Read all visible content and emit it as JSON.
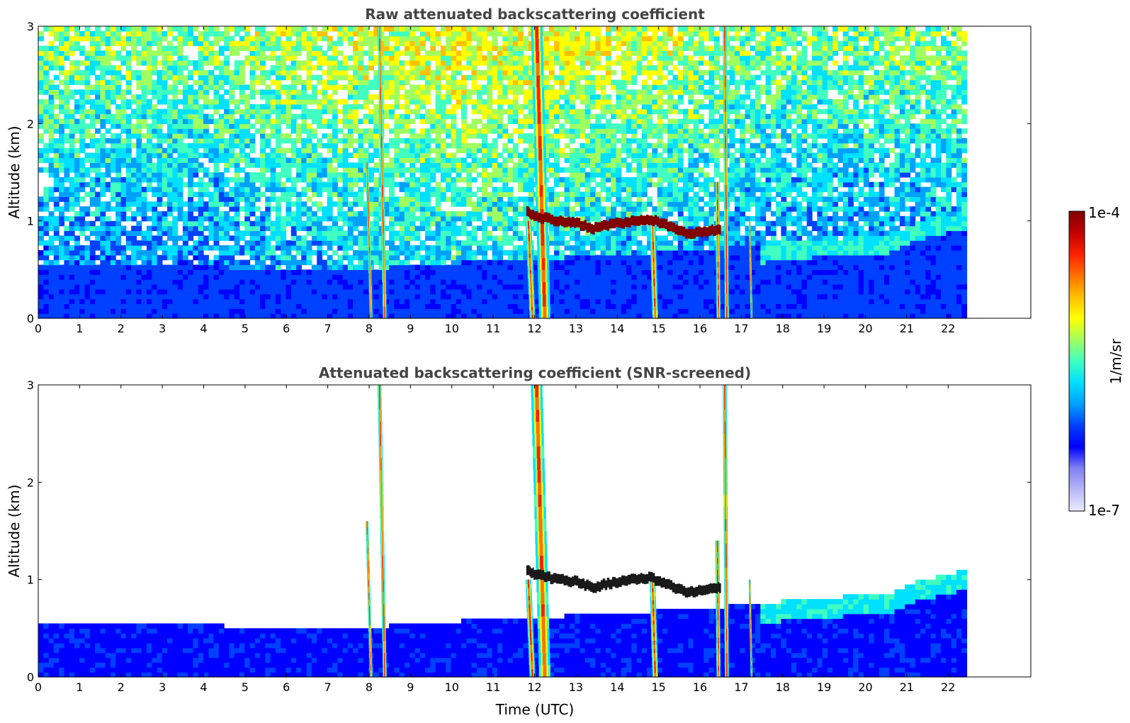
{
  "chart_data": [
    {
      "type": "heatmap",
      "title": "Raw attenuated backscattering coefficient",
      "xlabel": "",
      "ylabel": "Altitude (km)",
      "xlim": [
        0,
        24
      ],
      "ylim": [
        0,
        3
      ],
      "x_ticks": [
        "0",
        "1",
        "2",
        "3",
        "4",
        "5",
        "6",
        "7",
        "8",
        "9",
        "10",
        "11",
        "12",
        "13",
        "14",
        "15",
        "16",
        "17",
        "18",
        "19",
        "20",
        "21",
        "22"
      ],
      "y_ticks": [
        "0",
        "1",
        "2",
        "3"
      ],
      "data_end_time": 22.45,
      "screened": false
    },
    {
      "type": "heatmap",
      "title": "Attenuated backscattering coefficient (SNR-screened)",
      "xlabel": "Time (UTC)",
      "ylabel": "Altitude (km)",
      "xlim": [
        0,
        24
      ],
      "ylim": [
        0,
        3
      ],
      "x_ticks": [
        "0",
        "1",
        "2",
        "3",
        "4",
        "5",
        "6",
        "7",
        "8",
        "9",
        "10",
        "11",
        "12",
        "13",
        "14",
        "15",
        "16",
        "17",
        "18",
        "19",
        "20",
        "21",
        "22"
      ],
      "y_ticks": [
        "0",
        "1",
        "2",
        "3"
      ],
      "data_end_time": 22.45,
      "screened": true
    }
  ],
  "features": {
    "precip_shafts": [
      {
        "t_top": 8.25,
        "t_bottom": 8.38,
        "h_top": 3.0,
        "width": 0.09
      },
      {
        "t_top": 7.95,
        "t_bottom": 8.05,
        "h_top": 1.6,
        "width": 0.07
      },
      {
        "t_top": 12.05,
        "t_bottom": 12.25,
        "h_top": 3.0,
        "width": 0.28
      },
      {
        "t_top": 11.85,
        "t_bottom": 11.95,
        "h_top": 1.0,
        "width": 0.14
      },
      {
        "t_top": 14.85,
        "t_bottom": 14.92,
        "h_top": 1.0,
        "width": 0.14
      },
      {
        "t_top": 16.6,
        "t_bottom": 16.65,
        "h_top": 3.0,
        "width": 0.1
      },
      {
        "t_top": 16.42,
        "t_bottom": 16.45,
        "h_top": 1.4,
        "width": 0.1
      },
      {
        "t_top": 17.2,
        "t_bottom": 17.25,
        "h_top": 1.0,
        "width": 0.05
      }
    ],
    "cloud_layer": [
      {
        "t": 11.8,
        "h": 1.1
      },
      {
        "t": 12.0,
        "h": 1.05
      },
      {
        "t": 12.6,
        "h": 1.0
      },
      {
        "t": 13.0,
        "h": 0.98
      },
      {
        "t": 13.4,
        "h": 0.92
      },
      {
        "t": 13.8,
        "h": 0.96
      },
      {
        "t": 14.4,
        "h": 1.0
      },
      {
        "t": 14.8,
        "h": 1.02
      },
      {
        "t": 15.2,
        "h": 0.95
      },
      {
        "t": 15.7,
        "h": 0.86
      },
      {
        "t": 16.2,
        "h": 0.9
      },
      {
        "t": 16.5,
        "h": 0.92
      }
    ],
    "boundary_layer": [
      {
        "t": 0.0,
        "h": 0.55
      },
      {
        "t": 0.9,
        "h": 0.55
      },
      {
        "t": 3.0,
        "h": 0.55
      },
      {
        "t": 6.0,
        "h": 0.5
      },
      {
        "t": 8.0,
        "h": 0.5
      },
      {
        "t": 9.0,
        "h": 0.55
      },
      {
        "t": 11.5,
        "h": 0.6
      },
      {
        "t": 14.0,
        "h": 0.65
      },
      {
        "t": 17.5,
        "h": 0.75
      },
      {
        "t": 18.5,
        "h": 0.8
      },
      {
        "t": 20.5,
        "h": 0.85
      },
      {
        "t": 21.4,
        "h": 1.0
      },
      {
        "t": 22.45,
        "h": 1.1
      }
    ]
  },
  "colorbar": {
    "label": "1/m/sr",
    "min_label": "1e-7",
    "max_label": "1e-4",
    "colors": [
      "#ececff",
      "#b8b8f8",
      "#8080f4",
      "#0000ff",
      "#0040ff",
      "#00a0ff",
      "#00e0ff",
      "#40ffc0",
      "#a0ff60",
      "#ffff00",
      "#ffc000",
      "#ff7000",
      "#ff2000",
      "#c00000",
      "#800000"
    ]
  }
}
